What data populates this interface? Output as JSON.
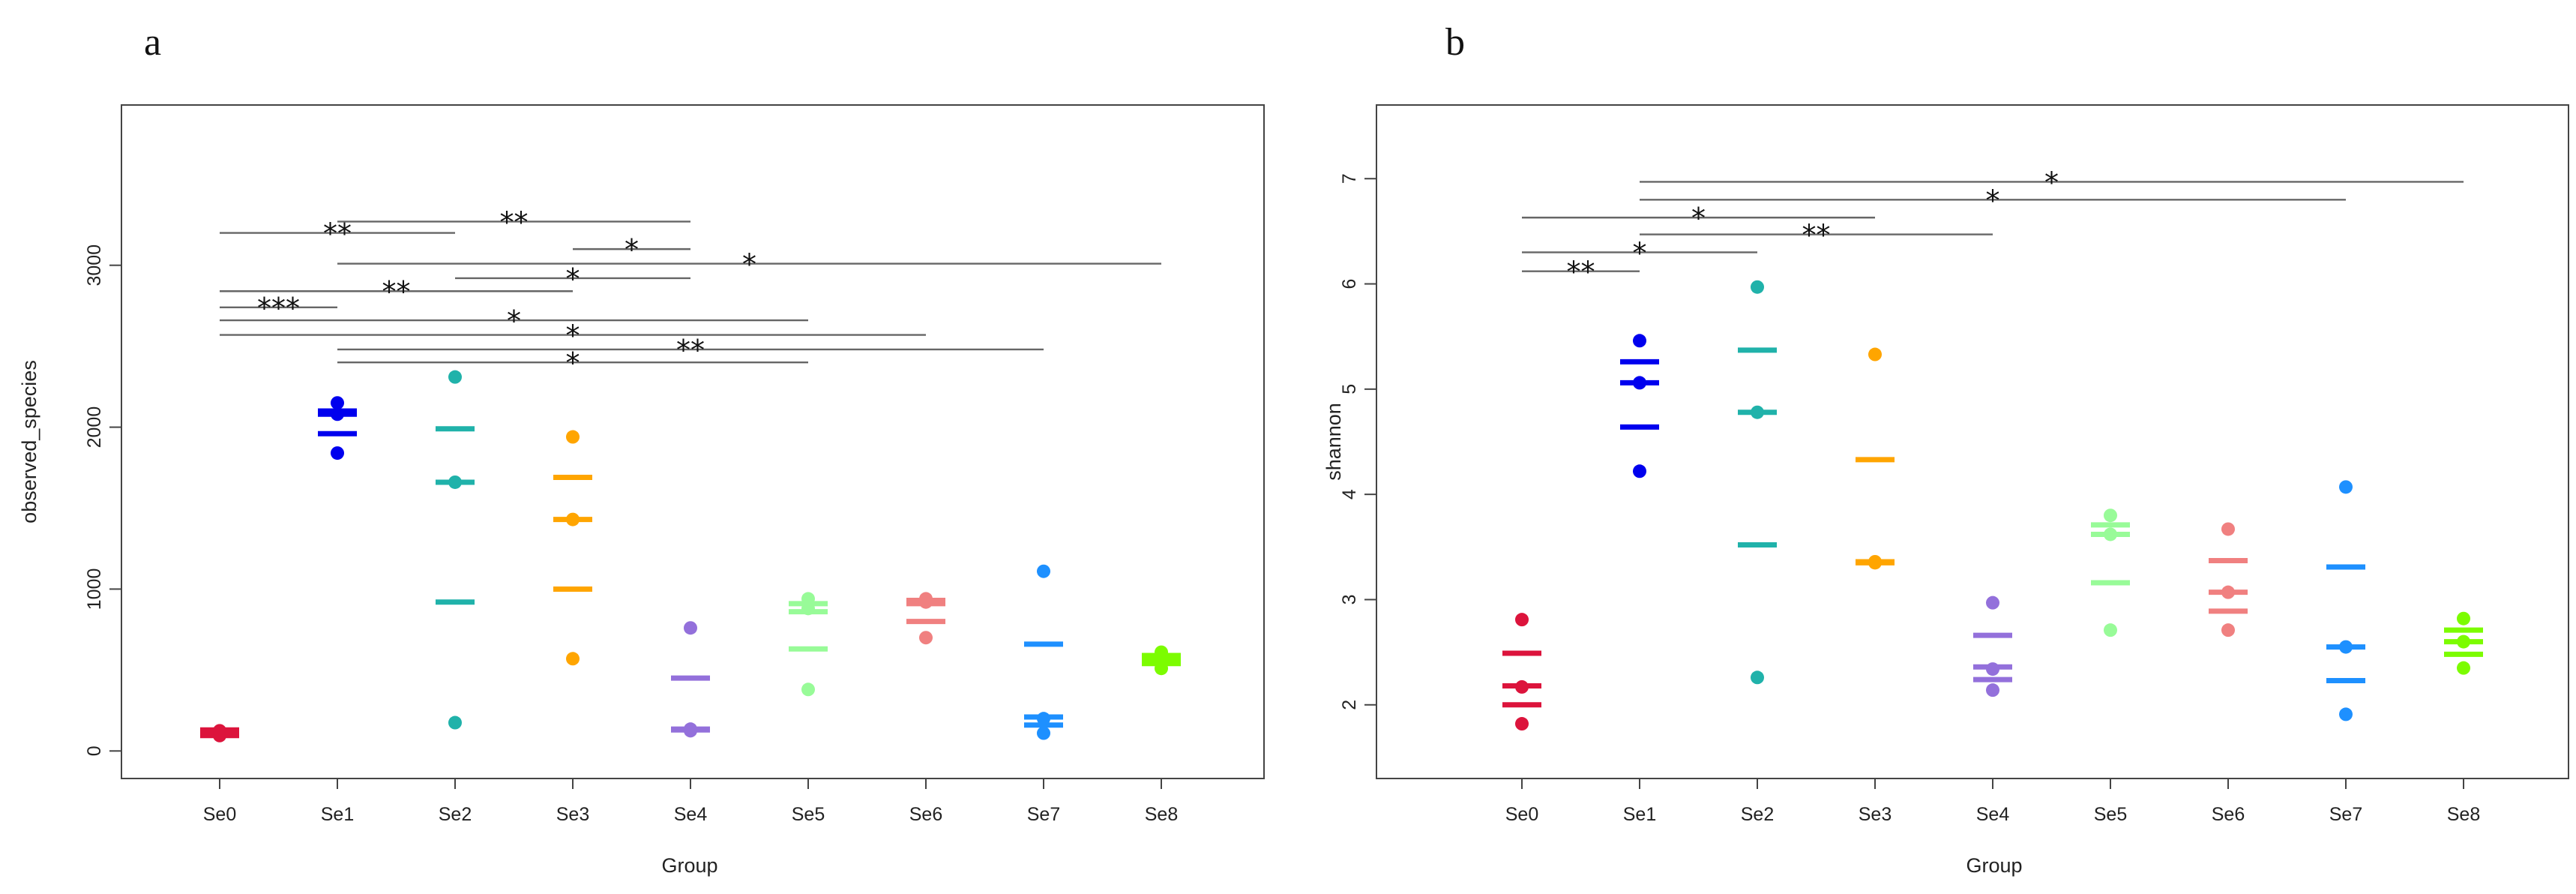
{
  "figure": {
    "panels": [
      "a",
      "b"
    ]
  },
  "chart_data": [
    {
      "panel": "a",
      "type": "scatter",
      "title": "",
      "xlabel": "Group",
      "ylabel": "observed_species",
      "categories": [
        "Se0",
        "Se1",
        "Se2",
        "Se3",
        "Se4",
        "Se5",
        "Se6",
        "Se7",
        "Se8"
      ],
      "colors": [
        "#dc143c",
        "#0000ee",
        "#20b2aa",
        "#ffa500",
        "#9370db",
        "#98fb98",
        "#f08080",
        "#1e90ff",
        "#7cfc00"
      ],
      "ylim": [
        -170,
        3990
      ],
      "yticks": [
        "0",
        "1000",
        "2000",
        "3000"
      ],
      "points": [
        [
          95,
          110,
          125
        ],
        [
          1840,
          2080,
          2150
        ],
        [
          175,
          1660,
          2310
        ],
        [
          570,
          1430,
          1940
        ],
        [
          125,
          135,
          760
        ],
        [
          380,
          880,
          940
        ],
        [
          700,
          920,
          940
        ],
        [
          110,
          200,
          1110
        ],
        [
          510,
          560,
          610
        ]
      ],
      "bars": [
        [
          95,
          115,
          130
        ],
        [
          1960,
          2080,
          2100
        ],
        [
          920,
          1660,
          1990
        ],
        [
          1000,
          1430,
          1690
        ],
        [
          130,
          135,
          450
        ],
        [
          630,
          860,
          910
        ],
        [
          800,
          910,
          930
        ],
        [
          160,
          210,
          660
        ],
        [
          540,
          560,
          590
        ]
      ],
      "significance": [
        {
          "from": "Se0",
          "to": "Se2",
          "y": 3200,
          "label": "**"
        },
        {
          "from": "Se1",
          "to": "Se4",
          "y": 3270,
          "label": "**"
        },
        {
          "from": "Se3",
          "to": "Se4",
          "y": 3100,
          "label": "*"
        },
        {
          "from": "Se1",
          "to": "Se8",
          "y": 3010,
          "label": "*"
        },
        {
          "from": "Se2",
          "to": "Se4",
          "y": 2920,
          "label": "*"
        },
        {
          "from": "Se0",
          "to": "Se3",
          "y": 2840,
          "label": "**"
        },
        {
          "from": "Se0",
          "to": "Se1",
          "y": 2740,
          "label": "***"
        },
        {
          "from": "Se0",
          "to": "Se5",
          "y": 2660,
          "label": "*"
        },
        {
          "from": "Se0",
          "to": "Se6",
          "y": 2570,
          "label": "*"
        },
        {
          "from": "Se1",
          "to": "Se7",
          "y": 2480,
          "label": "**"
        },
        {
          "from": "Se1",
          "to": "Se5",
          "y": 2400,
          "label": "*"
        }
      ]
    },
    {
      "panel": "b",
      "type": "scatter",
      "title": "",
      "xlabel": "Group",
      "ylabel": "shannon",
      "categories": [
        "Se0",
        "Se1",
        "Se2",
        "Se3",
        "Se4",
        "Se5",
        "Se6",
        "Se7",
        "Se8"
      ],
      "colors": [
        "#dc143c",
        "#0000ee",
        "#20b2aa",
        "#ffa500",
        "#9370db",
        "#98fb98",
        "#f08080",
        "#1e90ff",
        "#7cfc00"
      ],
      "ylim": [
        1.3,
        7.7
      ],
      "yticks": [
        "2",
        "3",
        "4",
        "5",
        "6",
        "7"
      ],
      "points": [
        [
          1.82,
          2.17,
          2.81
        ],
        [
          4.22,
          5.06,
          5.46
        ],
        [
          2.26,
          4.78,
          5.97
        ],
        [
          3.35,
          3.36,
          5.33
        ],
        [
          2.14,
          2.34,
          2.97
        ],
        [
          2.71,
          3.62,
          3.8
        ],
        [
          2.71,
          3.07,
          3.67
        ],
        [
          1.91,
          2.55,
          4.07
        ],
        [
          2.35,
          2.6,
          2.82
        ]
      ],
      "bars": [
        [
          2.0,
          2.18,
          2.49
        ],
        [
          4.64,
          5.06,
          5.26
        ],
        [
          3.52,
          4.78,
          5.37
        ],
        [
          3.35,
          3.36,
          4.33
        ],
        [
          2.24,
          2.36,
          2.66
        ],
        [
          3.16,
          3.62,
          3.71
        ],
        [
          2.89,
          3.07,
          3.37
        ],
        [
          2.23,
          2.55,
          3.31
        ],
        [
          2.48,
          2.6,
          2.71
        ]
      ],
      "significance": [
        {
          "from": "Se1",
          "to": "Se8",
          "y": 6.97,
          "label": "*"
        },
        {
          "from": "Se1",
          "to": "Se7",
          "y": 6.8,
          "label": "*"
        },
        {
          "from": "Se0",
          "to": "Se3",
          "y": 6.63,
          "label": "*"
        },
        {
          "from": "Se1",
          "to": "Se4",
          "y": 6.47,
          "label": "**"
        },
        {
          "from": "Se0",
          "to": "Se2",
          "y": 6.3,
          "label": "*"
        },
        {
          "from": "Se0",
          "to": "Se1",
          "y": 6.12,
          "label": "**"
        }
      ]
    }
  ]
}
